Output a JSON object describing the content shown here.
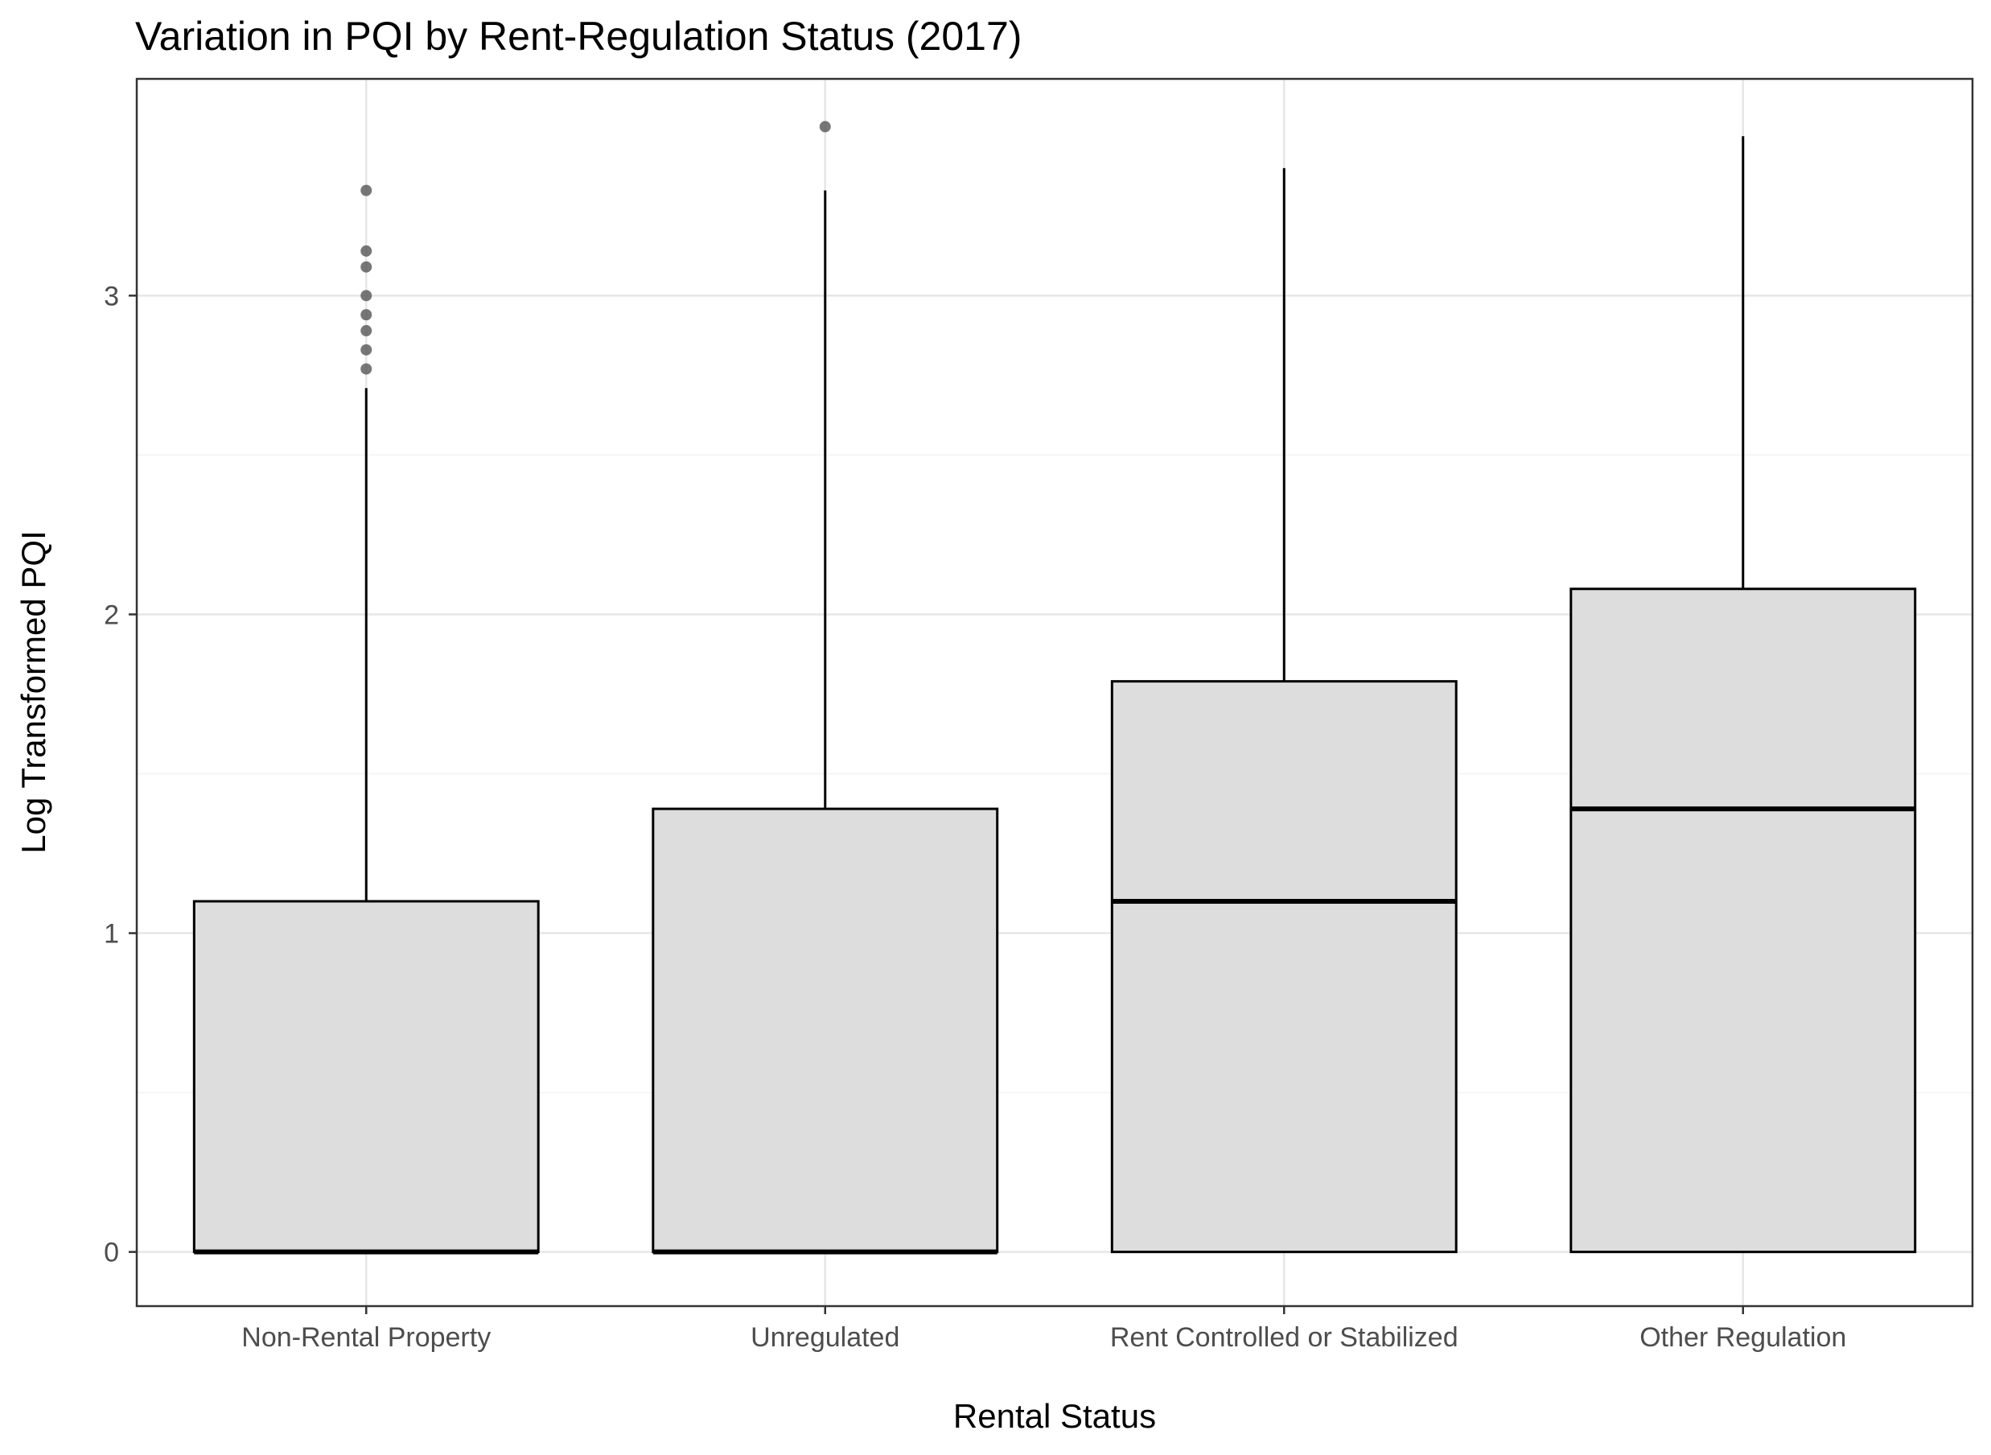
{
  "chart_data": {
    "type": "boxplot",
    "title": "Variation in PQI by Rent-Regulation Status (2017)",
    "xlabel": "Rental Status",
    "ylabel": "Log Transformed PQI",
    "ylim": [
      -0.17,
      3.68
    ],
    "yticks": [
      0,
      1,
      2,
      3
    ],
    "grid": true,
    "legend": "none",
    "categories": [
      "Non-Rental Property",
      "Unregulated",
      "Rent Controlled or Stabilized",
      "Other Regulation"
    ],
    "boxes": [
      {
        "category": "Non-Rental Property",
        "lower_whisker": 0,
        "q1": 0,
        "median": 0,
        "q3": 1.1,
        "upper_whisker": 2.71,
        "outliers": [
          2.77,
          2.83,
          2.89,
          2.94,
          3.0,
          3.09,
          3.14,
          3.33
        ]
      },
      {
        "category": "Unregulated",
        "lower_whisker": 0,
        "q1": 0,
        "median": 0,
        "q3": 1.39,
        "upper_whisker": 3.33,
        "outliers": [
          3.53
        ]
      },
      {
        "category": "Rent Controlled or Stabilized",
        "lower_whisker": 0,
        "q1": 0,
        "median": 1.1,
        "q3": 1.79,
        "upper_whisker": 3.4,
        "outliers": []
      },
      {
        "category": "Other Regulation",
        "lower_whisker": 0,
        "q1": 0,
        "median": 1.39,
        "q3": 2.08,
        "upper_whisker": 3.5,
        "outliers": []
      }
    ],
    "colors": {
      "box_fill": "#dddddd",
      "box_stroke": "#000000",
      "outlier": "#555555",
      "grid_major": "#e6e6e6",
      "grid_minor": "#f2f2f2",
      "panel_border": "#333333",
      "tick_text": "#4d4d4d"
    }
  }
}
